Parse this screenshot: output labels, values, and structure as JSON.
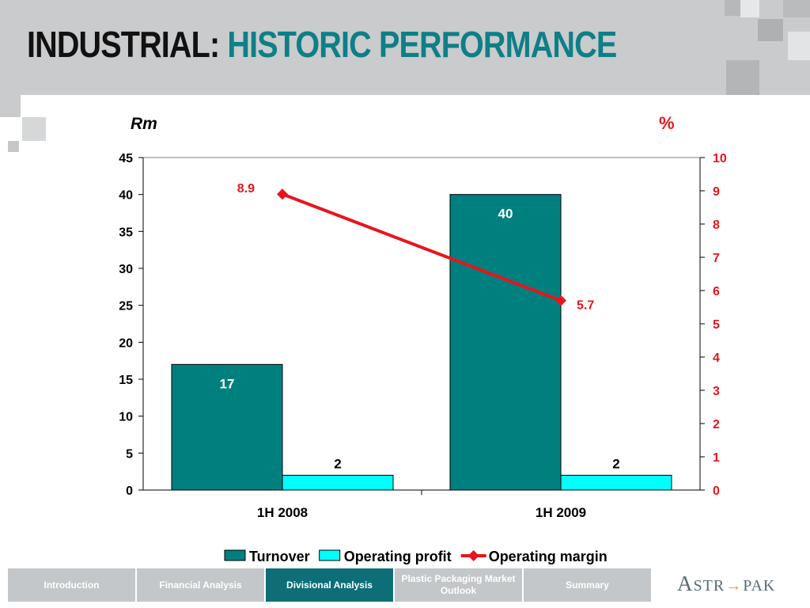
{
  "header": {
    "title_part1": "INDUSTRIAL:",
    "title_part2": "HISTORIC PERFORMANCE"
  },
  "nav": {
    "tabs": [
      {
        "label": "Introduction",
        "active": false
      },
      {
        "label": "Financial Analysis",
        "active": false
      },
      {
        "label": "Divisional Analysis",
        "active": true
      },
      {
        "label": "Plastic Packaging Market Outlook",
        "active": false
      },
      {
        "label": "Summary",
        "active": false
      }
    ]
  },
  "logo": {
    "text": "ASTRAPAK"
  },
  "chart_data": {
    "type": "bar",
    "title": "",
    "categories": [
      "1H 2008",
      "1H 2009"
    ],
    "ylabel": "Rm",
    "y2label": "%",
    "ylim": [
      0,
      45
    ],
    "yticks": [
      0,
      5,
      10,
      15,
      20,
      25,
      30,
      35,
      40,
      45
    ],
    "y2lim": [
      0,
      10
    ],
    "y2ticks": [
      0,
      1,
      2,
      3,
      4,
      5,
      6,
      7,
      8,
      9,
      10
    ],
    "grid": false,
    "legend_position": "bottom",
    "series": [
      {
        "name": "Turnover",
        "type": "bar",
        "axis": "left",
        "values": [
          17,
          40
        ],
        "labels": [
          "17",
          "40"
        ],
        "color": "#007f7f"
      },
      {
        "name": "Operating profit",
        "type": "bar",
        "axis": "left",
        "values": [
          2,
          2
        ],
        "labels": [
          "2",
          "2"
        ],
        "color": "#00ffff"
      },
      {
        "name": "Operating margin",
        "type": "line",
        "axis": "right",
        "values": [
          8.9,
          5.7
        ],
        "labels": [
          "8.9",
          "5.7"
        ],
        "color": "#e8151b"
      }
    ]
  },
  "colors": {
    "accent": "#0d7f87",
    "nav_active": "#0d6e78",
    "nav_inactive": "#c3c7c9"
  }
}
